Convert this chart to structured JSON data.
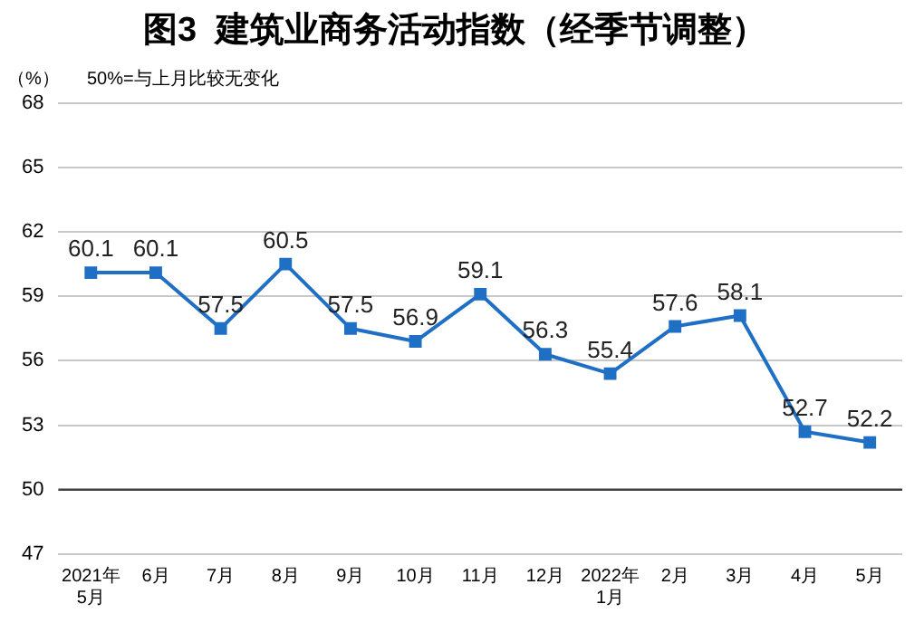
{
  "chart_data": {
    "type": "line",
    "title": "图3  建筑业商务活动指数（经季节调整）",
    "ylabel": "（%）",
    "annotations": [
      "50%=与上月比较无变化"
    ],
    "categories": [
      "2021年\n5月",
      "6月",
      "7月",
      "8月",
      "9月",
      "10月",
      "11月",
      "12月",
      "2022年\n1月",
      "2月",
      "3月",
      "4月",
      "5月"
    ],
    "series": [
      {
        "color": "#1f6fc5",
        "values": [
          60.1,
          60.1,
          57.5,
          60.5,
          57.5,
          56.9,
          59.1,
          56.3,
          55.4,
          57.6,
          58.1,
          52.7,
          52.2
        ]
      }
    ],
    "ylim": [
      47,
      68
    ],
    "yticks": [
      47,
      50,
      53,
      56,
      59,
      62,
      65,
      68
    ],
    "grid": "y",
    "legend": false,
    "marker": "square",
    "line_style": "solid",
    "data_labels": true,
    "ref_lines": [
      {
        "axis": "y",
        "value": 50,
        "color": "#404040"
      }
    ]
  }
}
